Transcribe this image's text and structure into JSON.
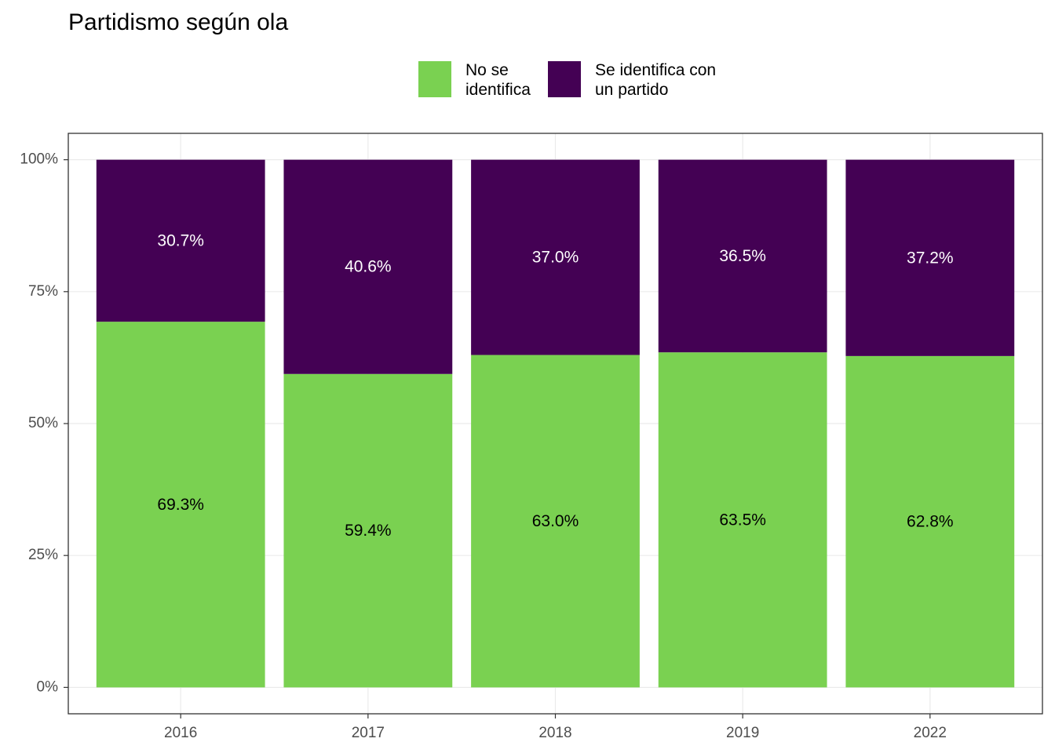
{
  "chart_data": {
    "type": "stacked_bar",
    "title": "Partidismo según ola",
    "categories": [
      "2016",
      "2017",
      "2018",
      "2019",
      "2022"
    ],
    "series": [
      {
        "name": "No se identifica",
        "color": "#7AD151",
        "values": [
          69.3,
          59.4,
          63.0,
          63.5,
          62.8
        ],
        "value_labels": [
          "69.3%",
          "59.4%",
          "63.0%",
          "63.5%",
          "62.8%"
        ]
      },
      {
        "name": "Se identifica con un partido",
        "color": "#440154",
        "values": [
          30.7,
          40.6,
          37.0,
          36.5,
          37.2
        ],
        "value_labels": [
          "30.7%",
          "40.6%",
          "37.0%",
          "36.5%",
          "37.2%"
        ]
      }
    ],
    "ylim": [
      -5,
      105
    ],
    "yticks": [
      {
        "value": 0,
        "label": "0%"
      },
      {
        "value": 25,
        "label": "25%"
      },
      {
        "value": 50,
        "label": "50%"
      },
      {
        "value": 75,
        "label": "75%"
      },
      {
        "value": 100,
        "label": "100%"
      }
    ],
    "grid": true,
    "legend_position": "top"
  }
}
